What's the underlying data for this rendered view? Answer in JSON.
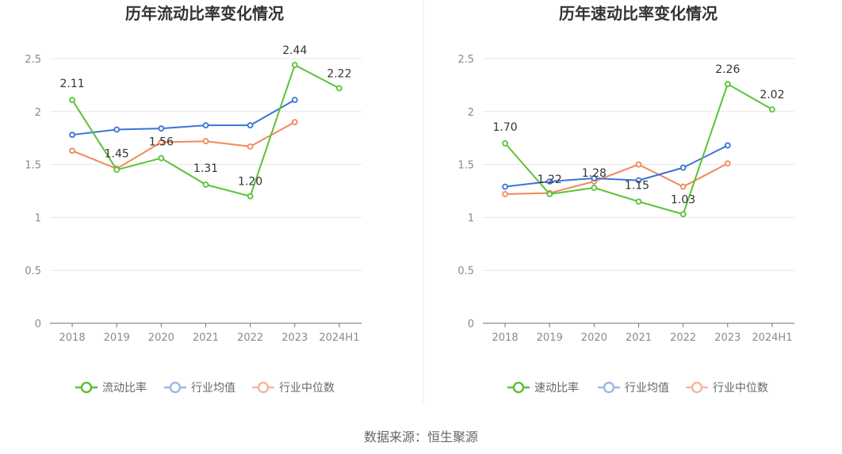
{
  "source_text": "数据来源：恒生聚源",
  "chart_data": [
    {
      "type": "line",
      "title": "历年流动比率变化情况",
      "categories": [
        "2018",
        "2019",
        "2020",
        "2021",
        "2022",
        "2023",
        "2024H1"
      ],
      "ylim": [
        0,
        2.5
      ],
      "yticks": [
        "0",
        "0.5",
        "1",
        "1.5",
        "2",
        "2.5"
      ],
      "grid": true,
      "legend_position": "bottom",
      "series": [
        {
          "name": "流动比率",
          "color": "#5bc236",
          "values": [
            2.11,
            1.45,
            1.56,
            1.31,
            1.2,
            2.44,
            2.22
          ],
          "labels": [
            "2.11",
            "1.45",
            "1.56",
            "1.31",
            "1.20",
            "2.44",
            "2.22"
          ]
        },
        {
          "name": "行业均值",
          "color": "#3b73d6",
          "values": [
            1.78,
            1.83,
            1.84,
            1.87,
            1.87,
            2.11,
            null
          ]
        },
        {
          "name": "行业中位数",
          "color": "#f0885a",
          "values": [
            1.63,
            1.46,
            1.71,
            1.72,
            1.67,
            1.9,
            null
          ]
        }
      ]
    },
    {
      "type": "line",
      "title": "历年速动比率变化情况",
      "categories": [
        "2018",
        "2019",
        "2020",
        "2021",
        "2022",
        "2023",
        "2024H1"
      ],
      "ylim": [
        0,
        2.5
      ],
      "yticks": [
        "0",
        "0.5",
        "1",
        "1.5",
        "2",
        "2.5"
      ],
      "grid": true,
      "legend_position": "bottom",
      "series": [
        {
          "name": "速动比率",
          "color": "#5bc236",
          "values": [
            1.7,
            1.22,
            1.28,
            1.15,
            1.03,
            2.26,
            2.02
          ],
          "labels": [
            "1.70",
            "1.22",
            "1.28",
            "1.15",
            "1.03",
            "2.26",
            "2.02"
          ]
        },
        {
          "name": "行业均值",
          "color": "#3b73d6",
          "values": [
            1.29,
            1.34,
            1.37,
            1.35,
            1.47,
            1.68,
            null
          ]
        },
        {
          "name": "行业中位数",
          "color": "#f0885a",
          "values": [
            1.22,
            1.23,
            1.34,
            1.5,
            1.29,
            1.51,
            null
          ]
        }
      ]
    }
  ]
}
